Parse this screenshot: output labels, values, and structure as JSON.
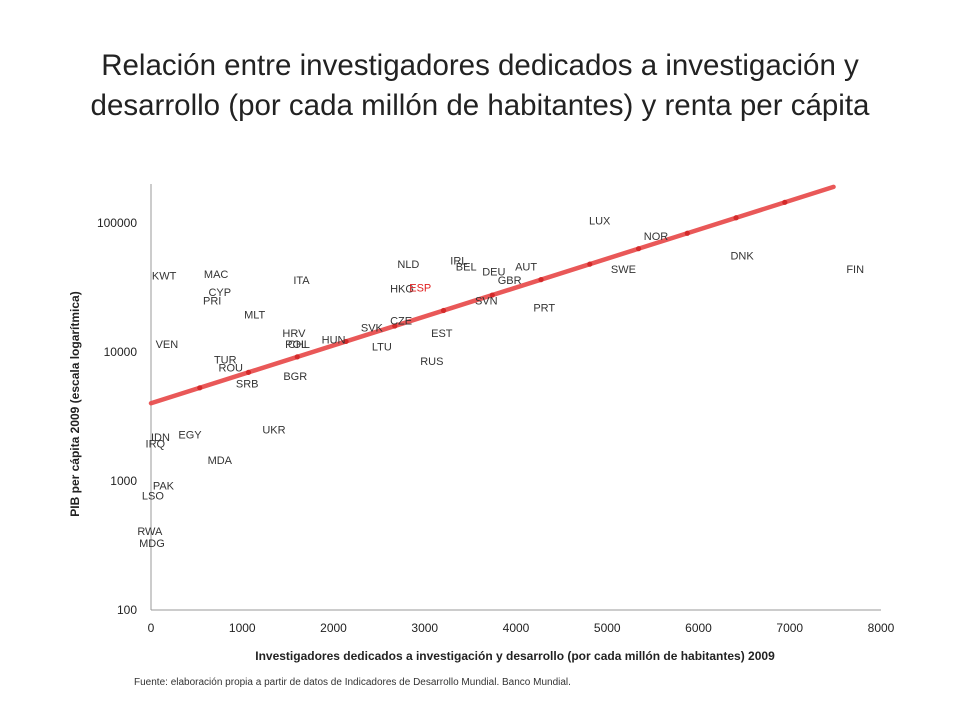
{
  "title_line1": "Relación entre investigadores dedicados a investigación y",
  "title_line2": "desarrollo (por cada millón de habitantes) y renta per cápita",
  "source": "Fuente: elaboración propia a partir de datos de Indicadores de Desarrollo Mundial. Banco Mundial.",
  "colors": {
    "label": "#333333",
    "highlight": "#e02020",
    "trend": "#e84a4a",
    "axis": "#999999"
  },
  "chart_data": {
    "type": "scatter",
    "xlabel": "Investigadores dedicados a investigación y desarrollo (por cada millón de habitantes) 2009",
    "ylabel": "PIB per cápita 2009 (escala logarítmica)",
    "x_scale": "linear",
    "y_scale": "log",
    "xlim": [
      0,
      8000
    ],
    "ylim": [
      100,
      200000
    ],
    "x_ticks": [
      0,
      1000,
      2000,
      3000,
      4000,
      5000,
      6000,
      7000,
      8000
    ],
    "y_ticks": [
      100,
      1000,
      10000,
      100000
    ],
    "grid": false,
    "legend": "none",
    "marker": "country code label",
    "points": [
      {
        "label": "LUX",
        "x": 4800,
        "y": 104000
      },
      {
        "label": "NOR",
        "x": 5400,
        "y": 79000
      },
      {
        "label": "DNK",
        "x": 6350,
        "y": 56000
      },
      {
        "label": "FIN",
        "x": 7620,
        "y": 44000
      },
      {
        "label": "SWE",
        "x": 5040,
        "y": 44000
      },
      {
        "label": "IRL",
        "x": 3280,
        "y": 51000
      },
      {
        "label": "BEL",
        "x": 3340,
        "y": 46000
      },
      {
        "label": "NLD",
        "x": 2700,
        "y": 48000
      },
      {
        "label": "DEU",
        "x": 3630,
        "y": 42000
      },
      {
        "label": "AUT",
        "x": 3990,
        "y": 46000
      },
      {
        "label": "GBR",
        "x": 3800,
        "y": 36000
      },
      {
        "label": "HKG",
        "x": 2620,
        "y": 31000
      },
      {
        "label": "ESP",
        "x": 2830,
        "y": 31500,
        "highlight": true
      },
      {
        "label": "SVN",
        "x": 3550,
        "y": 25000
      },
      {
        "label": "PRT",
        "x": 4190,
        "y": 22000
      },
      {
        "label": "CZE",
        "x": 2620,
        "y": 17500
      },
      {
        "label": "SVK",
        "x": 2300,
        "y": 15500
      },
      {
        "label": "EST",
        "x": 3070,
        "y": 14000
      },
      {
        "label": "LTU",
        "x": 2420,
        "y": 11000
      },
      {
        "label": "RUS",
        "x": 2950,
        "y": 8500
      },
      {
        "label": "HUN",
        "x": 1870,
        "y": 12500
      },
      {
        "label": "HRV",
        "x": 1440,
        "y": 14000
      },
      {
        "label": "POL",
        "x": 1470,
        "y": 11500
      },
      {
        "label": "CHL",
        "x": 1500,
        "y": 11500
      },
      {
        "label": "ITA",
        "x": 1560,
        "y": 36000
      },
      {
        "label": "MAC",
        "x": 580,
        "y": 40000
      },
      {
        "label": "KWT",
        "x": 10,
        "y": 39000
      },
      {
        "label": "CYP",
        "x": 630,
        "y": 29000
      },
      {
        "label": "PRI",
        "x": 570,
        "y": 25000
      },
      {
        "label": "MLT",
        "x": 1020,
        "y": 19500
      },
      {
        "label": "VEN",
        "x": 50,
        "y": 11500
      },
      {
        "label": "TUR",
        "x": 690,
        "y": 8700
      },
      {
        "label": "ROU",
        "x": 740,
        "y": 7600
      },
      {
        "label": "BGR",
        "x": 1450,
        "y": 6500
      },
      {
        "label": "SRB",
        "x": 930,
        "y": 5700
      },
      {
        "label": "UKR",
        "x": 1220,
        "y": 2500
      },
      {
        "label": "EGY",
        "x": 300,
        "y": 2300
      },
      {
        "label": "IDN",
        "x": 0,
        "y": 2200
      },
      {
        "label": "IRQ",
        "x": -60,
        "y": 1950
      },
      {
        "label": "MDA",
        "x": 620,
        "y": 1450
      },
      {
        "label": "PAK",
        "x": 20,
        "y": 920
      },
      {
        "label": "LSO",
        "x": -100,
        "y": 770
      },
      {
        "label": "RWA",
        "x": -150,
        "y": 410
      },
      {
        "label": "MDG",
        "x": -130,
        "y": 330
      }
    ],
    "trendline": {
      "type": "exponential",
      "color": "#e84a4a",
      "points": [
        {
          "x": 0,
          "y": 4000
        },
        {
          "x": 7480,
          "y": 190000
        }
      ]
    }
  }
}
